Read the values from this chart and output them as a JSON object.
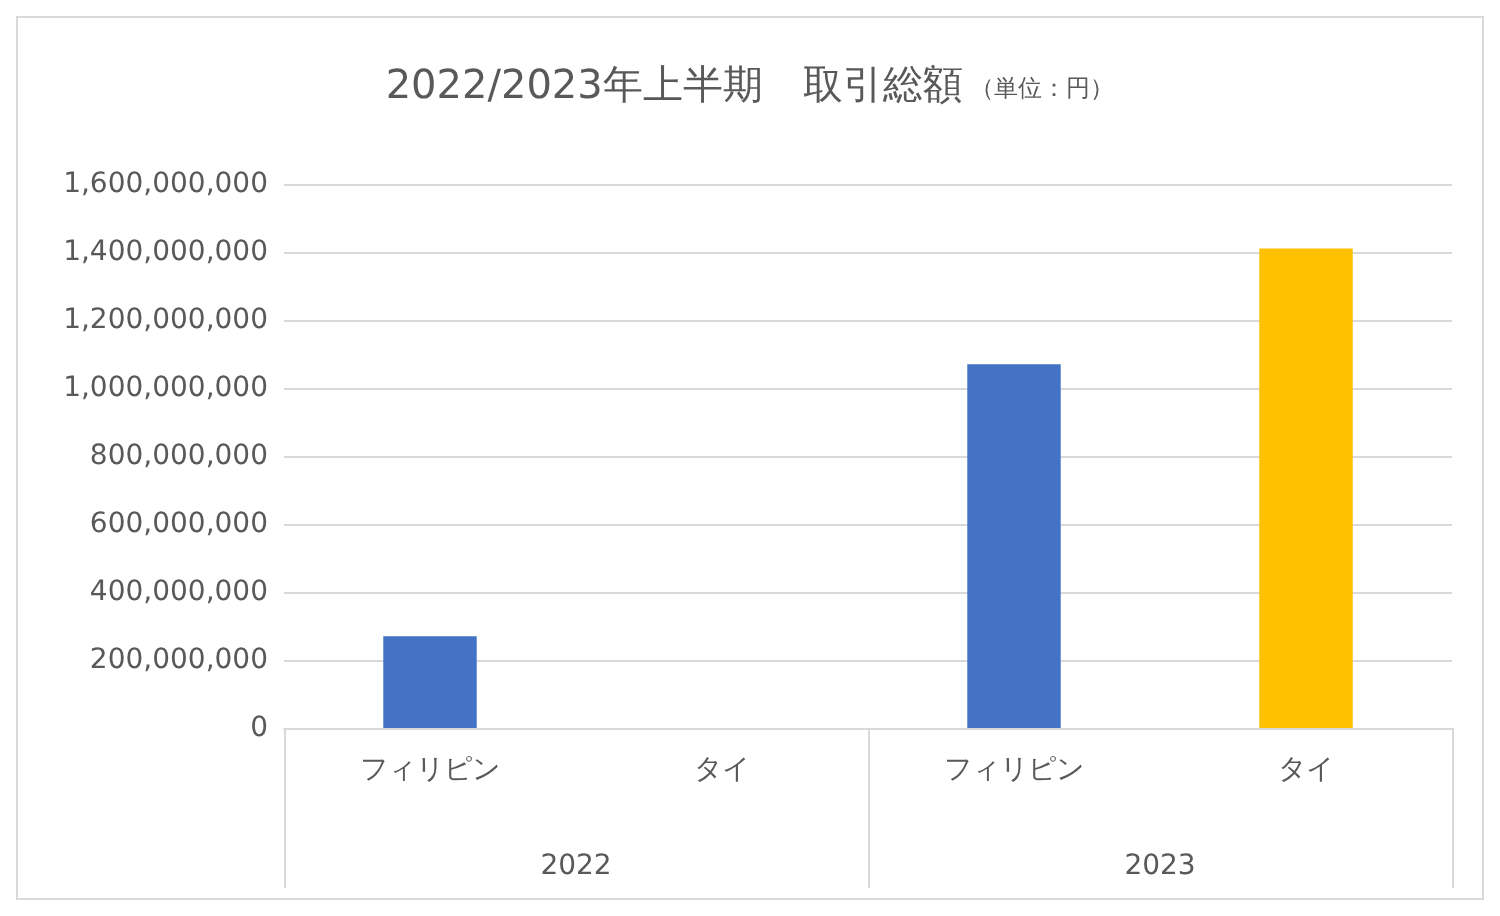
{
  "chart_data": {
    "type": "bar",
    "title": "2022/2023年上半期　取引総額",
    "subtitle": "（単位：円）",
    "categories": [
      "フィリピン",
      "タイ",
      "フィリピン",
      "タイ"
    ],
    "annotations": [
      "2022",
      "2023"
    ],
    "values": [
      270000000,
      null,
      1070000000,
      1410000000
    ],
    "colors": [
      "#4472c4",
      "#4472c4",
      "#4472c4",
      "#ffc000"
    ],
    "ylim": [
      0,
      1600000000
    ],
    "yticks": [
      0,
      {
        "value": 200000000,
        "label": "200,000,000"
      },
      {
        "value": 400000000,
        "label": "400,000,000"
      },
      {
        "value": 600000000,
        "label": "600,000,000"
      },
      {
        "value": 800000000,
        "label": "800,000,000"
      },
      {
        "value": 1000000000,
        "label": "1,000,000,000"
      },
      {
        "value": 1200000000,
        "label": "1,200,000,000"
      },
      {
        "value": 1400000000,
        "label": "1,400,000,000"
      },
      {
        "value": 1600000000,
        "label": "1,600,000,000"
      }
    ],
    "grid": true
  }
}
